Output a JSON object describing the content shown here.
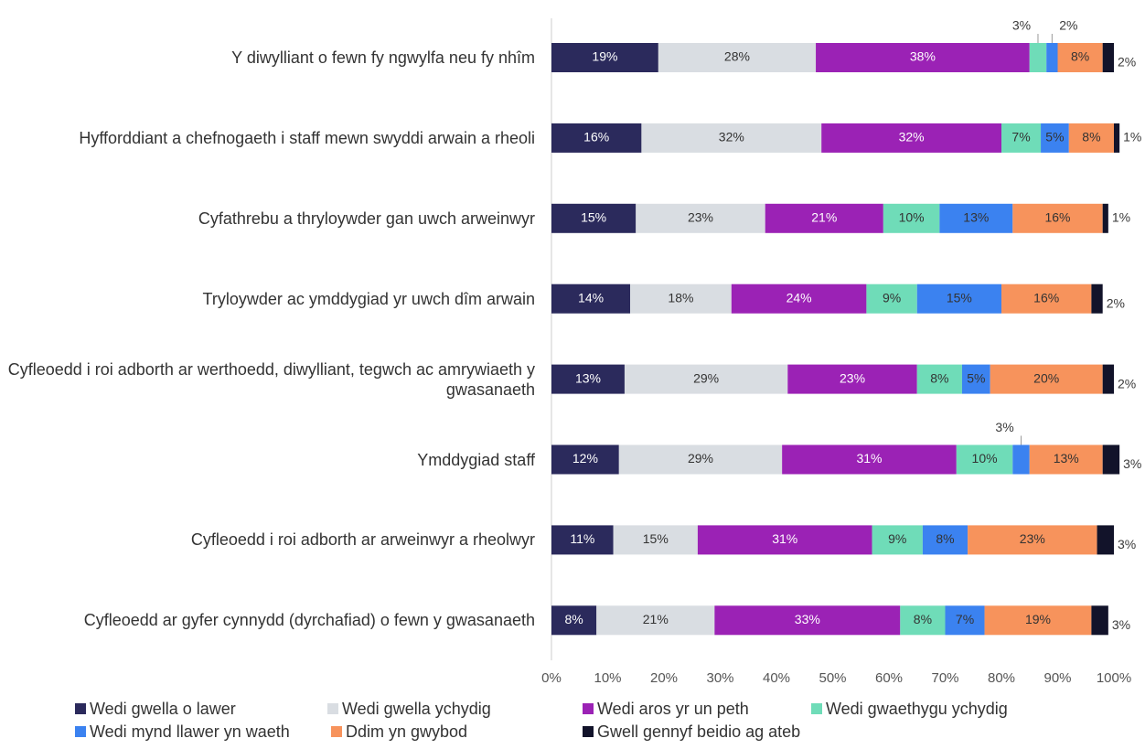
{
  "chart_data": {
    "type": "stacked-bar-horizontal",
    "categories": [
      "Y diwylliant o fewn fy ngwylfa neu fy nhîm",
      "Hyfforddiant a chefnogaeth i staff mewn swyddi arwain a rheoli",
      "Cyfathrebu a thryloywder gan uwch arweinwyr",
      "Tryloywder ac ymddygiad yr uwch dîm arwain",
      "Cyfleoedd i roi adborth ar werthoedd, diwylliant, tegwch ac amrywiaeth y gwasanaeth",
      "Ymddygiad staff",
      "Cyfleoedd i roi adborth ar arweinwyr a rheolwyr",
      "Cyfleoedd ar gyfer cynnydd (dyrchafiad) o fewn y gwasanaeth"
    ],
    "series": [
      {
        "name": "Wedi gwella o lawer",
        "color": "#2b2a5c",
        "values": [
          19,
          16,
          15,
          14,
          13,
          12,
          11,
          8
        ],
        "value_labels": [
          "19%",
          "16%",
          "15%",
          "14%",
          "13%",
          "12%",
          "11%",
          "8%"
        ]
      },
      {
        "name": "Wedi gwella ychydig",
        "color": "#d9dde2",
        "values": [
          28,
          32,
          23,
          18,
          29,
          29,
          15,
          21
        ],
        "value_labels": [
          "28%",
          "32%",
          "23%",
          "18%",
          "29%",
          "29%",
          "15%",
          "21%"
        ]
      },
      {
        "name": "Wedi aros yr un peth",
        "color": "#9b22b5",
        "values": [
          38,
          32,
          21,
          24,
          23,
          31,
          31,
          33
        ],
        "value_labels": [
          "38%",
          "32%",
          "21%",
          "24%",
          "23%",
          "31%",
          "31%",
          "33%"
        ]
      },
      {
        "name": "Wedi gwaethygu ychydig",
        "color": "#6fdcb8",
        "values": [
          3,
          7,
          10,
          9,
          8,
          10,
          9,
          8
        ],
        "value_labels": [
          "3%",
          "7%",
          "10%",
          "9%",
          "8%",
          "10%",
          "9%",
          "8%"
        ]
      },
      {
        "name": "Wedi mynd llawer yn waeth",
        "color": "#3b82f0",
        "values": [
          2,
          5,
          13,
          15,
          5,
          3,
          8,
          7
        ],
        "value_labels": [
          "2%",
          "5%",
          "13%",
          "15%",
          "5%",
          "3%",
          "8%",
          "7%"
        ]
      },
      {
        "name": "Ddim yn gwybod",
        "color": "#f7935c",
        "values": [
          8,
          8,
          16,
          16,
          20,
          13,
          23,
          19
        ],
        "value_labels": [
          "8%",
          "8%",
          "16%",
          "16%",
          "20%",
          "13%",
          "23%",
          "19%"
        ]
      },
      {
        "name": "Gwell gennyf beidio ag ateb",
        "color": "#12132a",
        "values": [
          2,
          1,
          1,
          2,
          2,
          3,
          3,
          3
        ],
        "value_labels": [
          "2%",
          "1%",
          "1%",
          "2%",
          "2%",
          "3%",
          "3%",
          "3%"
        ]
      }
    ],
    "xlim": [
      0,
      100
    ],
    "xticks": [
      {
        "value": 0,
        "label": "0%"
      },
      {
        "value": 10,
        "label": "10%"
      },
      {
        "value": 20,
        "label": "20%"
      },
      {
        "value": 30,
        "label": "30%"
      },
      {
        "value": 40,
        "label": "40%"
      },
      {
        "value": 50,
        "label": "50%"
      },
      {
        "value": 60,
        "label": "60%"
      },
      {
        "value": 70,
        "label": "70%"
      },
      {
        "value": 80,
        "label": "80%"
      },
      {
        "value": 90,
        "label": "90%"
      },
      {
        "value": 100,
        "label": "100%"
      }
    ],
    "legend": "bottom"
  }
}
